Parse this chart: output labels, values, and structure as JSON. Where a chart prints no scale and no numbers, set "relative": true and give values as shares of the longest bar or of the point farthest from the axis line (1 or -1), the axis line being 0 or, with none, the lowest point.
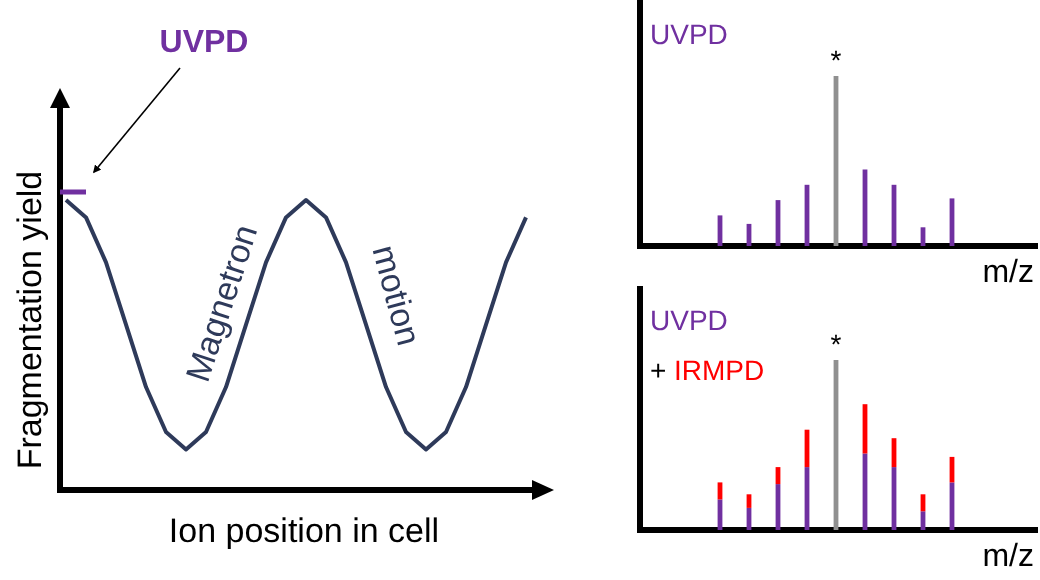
{
  "chart_data": [
    {
      "type": "line",
      "relative": true,
      "xlabel": "Ion position in cell",
      "ylabel": "Fragmentation yield",
      "categories": [
        null,
        null,
        null,
        null,
        null,
        null,
        null,
        null,
        null,
        null,
        null,
        null,
        null,
        null,
        null,
        null,
        null,
        null,
        null,
        null,
        null,
        null,
        null,
        null
      ],
      "series": [
        {
          "color": "#2e3a5a",
          "values": [
            1,
            0.94,
            0.785,
            0.57,
            0.355,
            0.2,
            0.14,
            0.2,
            0.355,
            0.57,
            0.785,
            0.94,
            1,
            0.94,
            0.785,
            0.57,
            0.355,
            0.2,
            0.14,
            0.2,
            0.355,
            0.57,
            0.785,
            0.94
          ]
        }
      ],
      "annotations": [
        "UVPD",
        "Magnetron",
        "motion"
      ]
    },
    {
      "type": "bar",
      "relative": true,
      "xlabel": "m/z",
      "categories": [
        null,
        null,
        null,
        null,
        null,
        null,
        null,
        null,
        null
      ],
      "series": [
        {
          "name": "UVPD",
          "color": "#7030a0",
          "values": [
            0.18,
            0.13,
            0.27,
            0.36,
            1,
            0.45,
            0.36,
            0.11,
            0.28
          ],
          "colors": [
            "#7030a0",
            "#7030a0",
            "#7030a0",
            "#7030a0",
            "#909090",
            "#7030a0",
            "#7030a0",
            "#7030a0",
            "#7030a0"
          ]
        }
      ],
      "annotations": [
        "*"
      ]
    },
    {
      "type": "bar",
      "relative": true,
      "stacked": true,
      "xlabel": "m/z",
      "categories": [
        null,
        null,
        null,
        null,
        null,
        null,
        null,
        null,
        null
      ],
      "series": [
        {
          "name": "UVPD",
          "color": "#7030a0",
          "values": [
            0.18,
            0.13,
            0.27,
            0.37,
            1,
            0.45,
            0.37,
            0.11,
            0.28
          ],
          "colors": [
            "#7030a0",
            "#7030a0",
            "#7030a0",
            "#7030a0",
            "#909090",
            "#7030a0",
            "#7030a0",
            "#7030a0",
            "#7030a0"
          ]
        },
        {
          "name": "IRMPD",
          "color": "#ff0000",
          "values": [
            0.1,
            0.08,
            0.1,
            0.22,
            null,
            0.29,
            0.17,
            0.1,
            0.15
          ]
        }
      ],
      "annotations": [
        "*",
        "+"
      ]
    }
  ]
}
